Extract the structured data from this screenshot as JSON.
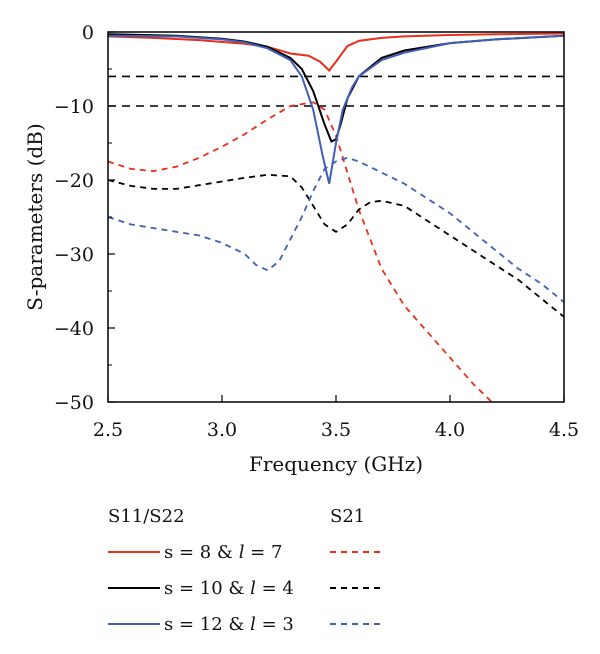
{
  "chart_data": {
    "type": "line",
    "xlabel": "Frequency (GHz)",
    "ylabel": "S-parameters (dB)",
    "xlim": [
      2.5,
      4.5
    ],
    "ylim": [
      -50,
      0
    ],
    "xticks": [
      "2.5",
      "3.0",
      "3.5",
      "4.0",
      "4.5"
    ],
    "yticks": [
      "0",
      "−10",
      "−20",
      "−30",
      "−40",
      "−50"
    ],
    "grid": false,
    "legend_headers": {
      "s11": "S11/S22",
      "s21": "S21"
    },
    "legend_placement": "below",
    "reference_lines": [
      {
        "y": -6,
        "style": "dashed",
        "color": "#000000"
      },
      {
        "y": -10,
        "style": "dashed",
        "color": "#000000"
      }
    ],
    "series": [
      {
        "label": "s = 8 & l = 7",
        "color": "#e8301c",
        "s11": {
          "x": [
            2.5,
            2.7,
            2.9,
            3.1,
            3.2,
            3.3,
            3.38,
            3.43,
            3.47,
            3.5,
            3.55,
            3.6,
            3.7,
            3.8,
            4.0,
            4.2,
            4.5
          ],
          "y": [
            -0.6,
            -0.8,
            -1.1,
            -1.6,
            -2.0,
            -2.9,
            -3.2,
            -4.0,
            -5.2,
            -4.0,
            -1.9,
            -1.2,
            -0.8,
            -0.6,
            -0.4,
            -0.3,
            -0.2
          ]
        },
        "s21": {
          "x": [
            2.5,
            2.6,
            2.7,
            2.8,
            2.9,
            3.0,
            3.1,
            3.2,
            3.3,
            3.4,
            3.45,
            3.5,
            3.55,
            3.6,
            3.7,
            3.8,
            3.9,
            4.0,
            4.1,
            4.2
          ],
          "y": [
            -17.5,
            -18.5,
            -18.8,
            -18.2,
            -17.0,
            -15.5,
            -13.8,
            -11.8,
            -10.0,
            -9.5,
            -10.5,
            -14.0,
            -19.0,
            -24.0,
            -32.0,
            -37.0,
            -40.5,
            -44.0,
            -47.5,
            -50.5
          ]
        }
      },
      {
        "label": "s = 10 & l = 4",
        "color": "#000000",
        "s11": {
          "x": [
            2.5,
            2.8,
            3.0,
            3.1,
            3.2,
            3.3,
            3.35,
            3.4,
            3.45,
            3.48,
            3.5,
            3.52,
            3.55,
            3.6,
            3.7,
            3.8,
            4.0,
            4.2,
            4.5
          ],
          "y": [
            -0.3,
            -0.5,
            -0.9,
            -1.3,
            -2.0,
            -3.5,
            -5.0,
            -8.0,
            -12.5,
            -14.8,
            -14.5,
            -12.5,
            -9.0,
            -6.0,
            -3.5,
            -2.5,
            -1.5,
            -1.0,
            -0.5
          ]
        },
        "s21": {
          "x": [
            2.5,
            2.6,
            2.7,
            2.8,
            2.9,
            3.0,
            3.1,
            3.2,
            3.3,
            3.35,
            3.4,
            3.45,
            3.5,
            3.55,
            3.6,
            3.65,
            3.7,
            3.8,
            3.9,
            4.0,
            4.1,
            4.2,
            4.3,
            4.4,
            4.5
          ],
          "y": [
            -20.0,
            -20.8,
            -21.2,
            -21.2,
            -20.7,
            -20.2,
            -19.7,
            -19.3,
            -19.5,
            -21.0,
            -23.5,
            -26.0,
            -27.0,
            -26.0,
            -24.0,
            -23.0,
            -22.8,
            -23.5,
            -25.5,
            -27.5,
            -29.5,
            -31.5,
            -33.5,
            -36.0,
            -38.5
          ]
        }
      },
      {
        "label": "s = 12 & l = 3",
        "color": "#4060b8",
        "s11": {
          "x": [
            2.5,
            2.8,
            3.0,
            3.1,
            3.2,
            3.3,
            3.35,
            3.4,
            3.44,
            3.47,
            3.5,
            3.53,
            3.57,
            3.6,
            3.7,
            3.8,
            4.0,
            4.2,
            4.5
          ],
          "y": [
            -0.5,
            -0.6,
            -1.0,
            -1.4,
            -2.2,
            -3.8,
            -6.0,
            -10.5,
            -16.5,
            -20.5,
            -15.0,
            -10.5,
            -7.5,
            -6.0,
            -3.8,
            -2.8,
            -1.5,
            -1.0,
            -0.5
          ]
        },
        "s21": {
          "x": [
            2.5,
            2.6,
            2.7,
            2.8,
            2.9,
            3.0,
            3.1,
            3.15,
            3.2,
            3.25,
            3.3,
            3.35,
            3.4,
            3.45,
            3.5,
            3.55,
            3.6,
            3.7,
            3.8,
            3.9,
            4.0,
            4.1,
            4.2,
            4.3,
            4.4,
            4.5
          ],
          "y": [
            -25.0,
            -26.0,
            -26.5,
            -27.0,
            -27.5,
            -28.5,
            -30.0,
            -31.5,
            -32.2,
            -31.0,
            -28.0,
            -25.0,
            -21.5,
            -18.5,
            -17.5,
            -17.0,
            -17.5,
            -19.0,
            -20.5,
            -22.5,
            -24.5,
            -27.0,
            -29.5,
            -32.0,
            -34.0,
            -36.5
          ]
        }
      }
    ]
  }
}
